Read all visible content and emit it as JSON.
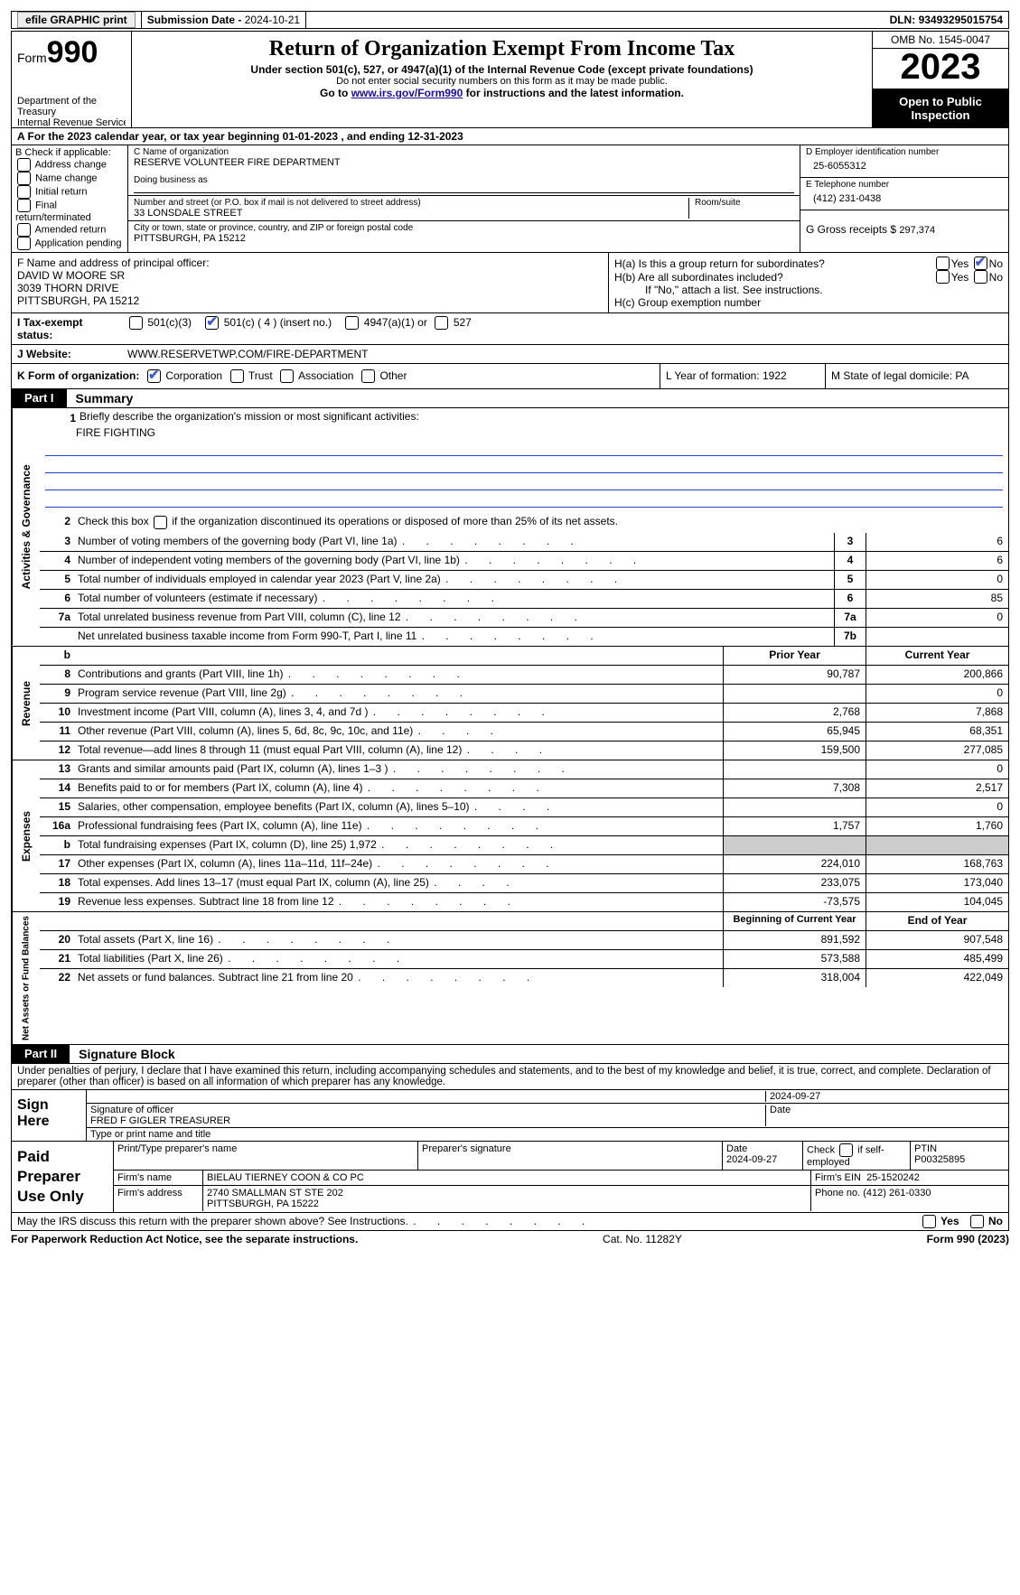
{
  "topbar": {
    "efile": "efile GRAPHIC print",
    "submission_label": "Submission Date - ",
    "submission_date": "2024-10-21",
    "dln_label": "DLN: ",
    "dln": "93493295015754"
  },
  "header": {
    "form_word": "Form",
    "form_number": "990",
    "dept1": "Department of the Treasury",
    "dept2": "Internal Revenue Service",
    "title": "Return of Organization Exempt From Income Tax",
    "subtitle": "Under section 501(c), 527, or 4947(a)(1) of the Internal Revenue Code (except private foundations)",
    "note_ssn": "Do not enter social security numbers on this form as it may be made public.",
    "goto_prefix": "Go to ",
    "goto_link": "www.irs.gov/Form990",
    "goto_suffix": " for instructions and the latest information.",
    "omb": "OMB No. 1545-0047",
    "year": "2023",
    "open": "Open to Public Inspection"
  },
  "row_a": "A  For the 2023 calendar year, or tax year beginning 01-01-2023   , and ending 12-31-2023",
  "section_b": {
    "header": "B Check if applicable:",
    "items": [
      "Address change",
      "Name change",
      "Initial return",
      "Final return/terminated",
      "Amended return",
      "Application pending"
    ]
  },
  "section_c": {
    "name_label": "C Name of organization",
    "name": "RESERVE VOLUNTEER FIRE DEPARTMENT",
    "dba_label": "Doing business as",
    "street_label": "Number and street (or P.O. box if mail is not delivered to street address)",
    "street": "33 LONSDALE STREET",
    "room_label": "Room/suite",
    "city_label": "City or town, state or province, country, and ZIP or foreign postal code",
    "city": "PITTSBURGH, PA  15212"
  },
  "section_d": {
    "label": "D Employer identification number",
    "value": "25-6055312"
  },
  "section_e": {
    "label": "E Telephone number",
    "value": "(412) 231-0438"
  },
  "section_g": {
    "label": "G Gross receipts $ ",
    "value": "297,374"
  },
  "section_f": {
    "label": "F  Name and address of principal officer:",
    "line1": "DAVID W MOORE SR",
    "line2": "3039 THORN DRIVE",
    "line3": "PITTSBURGH, PA  15212"
  },
  "section_h": {
    "ha_label": "H(a)  Is this a group return for subordinates?",
    "hb_label": "H(b)  Are all subordinates included?",
    "hb_note": "If \"No,\" attach a list. See instructions.",
    "hc_label": "H(c)  Group exemption number",
    "yes": "Yes",
    "no": "No"
  },
  "row_i": {
    "label": "I   Tax-exempt status:",
    "opt1": "501(c)(3)",
    "opt2": "501(c) ( 4 ) (insert no.)",
    "opt3": "4947(a)(1) or",
    "opt4": "527"
  },
  "row_j": {
    "label": "J   Website:",
    "value": "WWW.RESERVETWP.COM/FIRE-DEPARTMENT"
  },
  "row_k": {
    "label": "K Form of organization:",
    "opts": [
      "Corporation",
      "Trust",
      "Association",
      "Other"
    ],
    "l_label": "L Year of formation: ",
    "l_val": "1922",
    "m_label": "M State of legal domicile: ",
    "m_val": "PA"
  },
  "part1": {
    "tab": "Part I",
    "title": "Summary"
  },
  "governance": {
    "vlabel": "Activities & Governance",
    "line1_label": "Briefly describe the organization's mission or most significant activities:",
    "line1_val": "FIRE FIGHTING",
    "line2": "Check this box    if the organization discontinued its operations or disposed of more than 25% of its net assets.",
    "rows": [
      {
        "n": "3",
        "desc": "Number of voting members of the governing body (Part VI, line 1a)",
        "box": "3",
        "val": "6"
      },
      {
        "n": "4",
        "desc": "Number of independent voting members of the governing body (Part VI, line 1b)",
        "box": "4",
        "val": "6"
      },
      {
        "n": "5",
        "desc": "Total number of individuals employed in calendar year 2023 (Part V, line 2a)",
        "box": "5",
        "val": "0"
      },
      {
        "n": "6",
        "desc": "Total number of volunteers (estimate if necessary)",
        "box": "6",
        "val": "85"
      },
      {
        "n": "7a",
        "desc": "Total unrelated business revenue from Part VIII, column (C), line 12",
        "box": "7a",
        "val": "0"
      },
      {
        "n": "",
        "desc": "Net unrelated business taxable income from Form 990-T, Part I, line 11",
        "box": "7b",
        "val": ""
      }
    ]
  },
  "revenue": {
    "vlabel": "Revenue",
    "head_prior": "Prior Year",
    "head_current": "Current Year",
    "rows": [
      {
        "n": "8",
        "desc": "Contributions and grants (Part VIII, line 1h)",
        "prior": "90,787",
        "curr": "200,866"
      },
      {
        "n": "9",
        "desc": "Program service revenue (Part VIII, line 2g)",
        "prior": "",
        "curr": "0"
      },
      {
        "n": "10",
        "desc": "Investment income (Part VIII, column (A), lines 3, 4, and 7d )",
        "prior": "2,768",
        "curr": "7,868"
      },
      {
        "n": "11",
        "desc": "Other revenue (Part VIII, column (A), lines 5, 6d, 8c, 9c, 10c, and 11e)",
        "prior": "65,945",
        "curr": "68,351"
      },
      {
        "n": "12",
        "desc": "Total revenue—add lines 8 through 11 (must equal Part VIII, column (A), line 12)",
        "prior": "159,500",
        "curr": "277,085"
      }
    ]
  },
  "expenses": {
    "vlabel": "Expenses",
    "rows": [
      {
        "n": "13",
        "desc": "Grants and similar amounts paid (Part IX, column (A), lines 1–3 )",
        "prior": "",
        "curr": "0"
      },
      {
        "n": "14",
        "desc": "Benefits paid to or for members (Part IX, column (A), line 4)",
        "prior": "7,308",
        "curr": "2,517"
      },
      {
        "n": "15",
        "desc": "Salaries, other compensation, employee benefits (Part IX, column (A), lines 5–10)",
        "prior": "",
        "curr": "0"
      },
      {
        "n": "16a",
        "desc": "Professional fundraising fees (Part IX, column (A), line 11e)",
        "prior": "1,757",
        "curr": "1,760"
      },
      {
        "n": "b",
        "desc": "Total fundraising expenses (Part IX, column (D), line 25) 1,972",
        "prior": "shade",
        "curr": "shade"
      },
      {
        "n": "17",
        "desc": "Other expenses (Part IX, column (A), lines 11a–11d, 11f–24e)",
        "prior": "224,010",
        "curr": "168,763"
      },
      {
        "n": "18",
        "desc": "Total expenses. Add lines 13–17 (must equal Part IX, column (A), line 25)",
        "prior": "233,075",
        "curr": "173,040"
      },
      {
        "n": "19",
        "desc": "Revenue less expenses. Subtract line 18 from line 12",
        "prior": "-73,575",
        "curr": "104,045"
      }
    ]
  },
  "netassets": {
    "vlabel": "Net Assets or Fund Balances",
    "head_begin": "Beginning of Current Year",
    "head_end": "End of Year",
    "rows": [
      {
        "n": "20",
        "desc": "Total assets (Part X, line 16)",
        "prior": "891,592",
        "curr": "907,548"
      },
      {
        "n": "21",
        "desc": "Total liabilities (Part X, line 26)",
        "prior": "573,588",
        "curr": "485,499"
      },
      {
        "n": "22",
        "desc": "Net assets or fund balances. Subtract line 21 from line 20",
        "prior": "318,004",
        "curr": "422,049"
      }
    ]
  },
  "part2": {
    "tab": "Part II",
    "title": "Signature Block"
  },
  "sig_decl": "Under penalties of perjury, I declare that I have examined this return, including accompanying schedules and statements, and to the best of my knowledge and belief, it is true, correct, and complete. Declaration of preparer (other than officer) is based on all information of which preparer has any knowledge.",
  "sign": {
    "left": "Sign Here",
    "sig_label": "Signature of officer",
    "name": "FRED F GIGLER  TREASURER",
    "type_label": "Type or print name and title",
    "date_label": "Date",
    "date": "2024-09-27"
  },
  "preparer": {
    "left": "Paid Preparer Use Only",
    "h1": "Print/Type preparer's name",
    "h2": "Preparer's signature",
    "h3": "Date",
    "h3v": "2024-09-27",
    "h4": "Check         if self-employed",
    "h5": "PTIN",
    "h5v": "P00325895",
    "firm_label": "Firm's name",
    "firm": "BIELAU TIERNEY COON & CO PC",
    "ein_label": "Firm's EIN",
    "ein": "25-1520242",
    "addr_label": "Firm's address",
    "addr1": "2740 SMALLMAN ST STE 202",
    "addr2": "PITTSBURGH, PA  15222",
    "phone_label": "Phone no.",
    "phone": "(412) 261-0330"
  },
  "discuss": "May the IRS discuss this return with the preparer shown above? See Instructions.",
  "footer": {
    "left": "For Paperwork Reduction Act Notice, see the separate instructions.",
    "mid": "Cat. No. 11282Y",
    "right": "Form 990 (2023)"
  }
}
